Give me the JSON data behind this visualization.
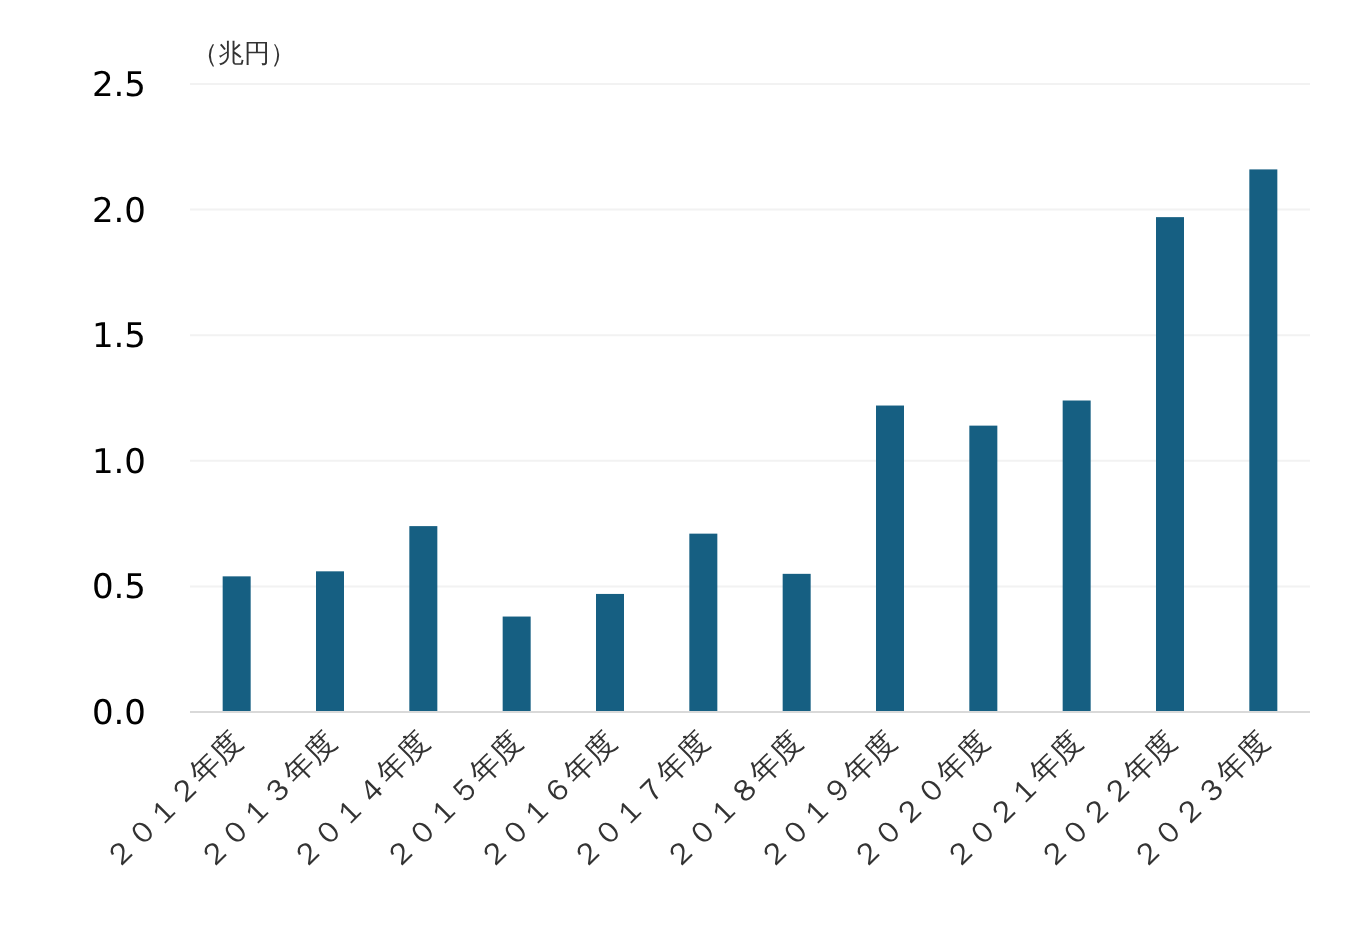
{
  "chart_data": {
    "type": "bar",
    "ylabel": "（兆円）",
    "categories": [
      "２０１２年度",
      "２０１３年度",
      "２０１４年度",
      "２０１５年度",
      "２０１６年度",
      "２０１７年度",
      "２０１８年度",
      "２０１９年度",
      "２０２０年度",
      "２０２１年度",
      "２０２２年度",
      "２０２３年度"
    ],
    "values": [
      0.54,
      0.56,
      0.74,
      0.38,
      0.47,
      0.71,
      0.55,
      1.22,
      1.14,
      1.24,
      1.97,
      2.16
    ],
    "color": "#165f82",
    "ylim": [
      0,
      2.5
    ],
    "yticks": [
      {
        "value": 0,
        "label": "0.0"
      },
      0.5,
      {
        "value": 1,
        "label": "1.0"
      },
      1.5,
      {
        "value": 2,
        "label": "2.0"
      },
      2.5
    ],
    "grid": "y"
  }
}
